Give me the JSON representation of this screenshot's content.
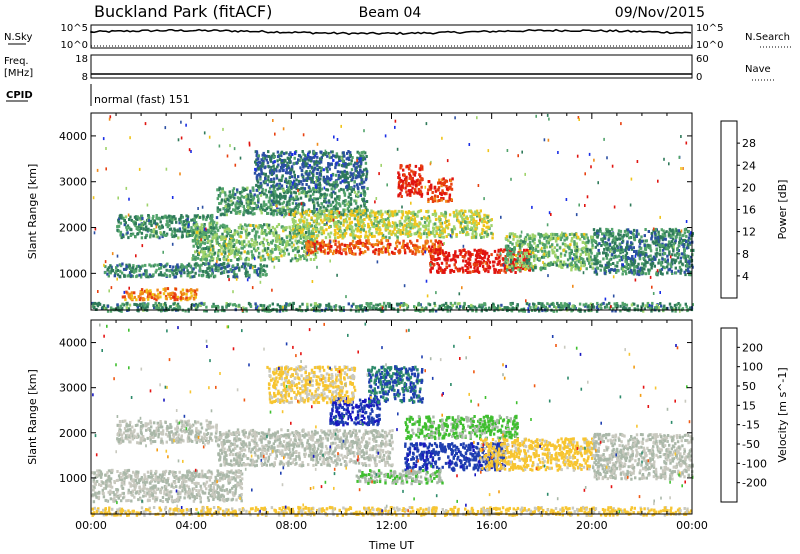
{
  "header": {
    "site": "Buckland Park (fitACF)",
    "beam": "Beam 04",
    "date": "09/Nov/2015"
  },
  "params": {
    "nsky_label": "N.Sky",
    "nsky_top": "10^5",
    "nsky_bottom": "10^0",
    "nsearch_label": "N.Search",
    "nsearch_top": "10^5",
    "nsearch_bottom": "10^0",
    "freq_label": "Freq.",
    "freq_unit": "[MHz]",
    "freq_top": "18",
    "freq_bottom": "8",
    "nave_label": "Nave",
    "nave_top": "60",
    "nave_bottom": "0",
    "cpid_label": "CPID",
    "cpid_value": "normal (fast) 151"
  },
  "colors": {
    "power": [
      "#1a2ee6",
      "#2b4fa3",
      "#2f7a5a",
      "#52a36b",
      "#9fd36b",
      "#f0c419",
      "#f08a1a",
      "#e8400f",
      "#e01410"
    ],
    "velocity": [
      "#e51414",
      "#f05a14",
      "#f39c12",
      "#f7c531",
      "#c9c9bf",
      "#aab8a9",
      "#3fbf2f",
      "#2c8a6a",
      "#1f3fb0",
      "#1818c0"
    ]
  },
  "chart_data": [
    {
      "type": "heatmap",
      "quantity": "Power",
      "x_label": "Time UT",
      "x_ticks": [
        "00:00",
        "04:00",
        "08:00",
        "12:00",
        "16:00",
        "20:00",
        "00:00"
      ],
      "x_range_hours": [
        0,
        24
      ],
      "ylabel": "Slant Range [km]",
      "ylim": [
        200,
        4500
      ],
      "y_ticks": [
        1000,
        2000,
        3000,
        4000
      ],
      "colorbar_label": "Power [dB]",
      "colorbar_ticks": [
        "28",
        "24",
        "20",
        "16",
        "12",
        "8",
        "4"
      ],
      "colorbar_range": [
        0,
        30
      ],
      "echo_regions": [
        {
          "t_start": 0,
          "t_end": 24,
          "range_min": 200,
          "range_max": 380,
          "value": 10
        },
        {
          "t_start": 1.2,
          "t_end": 4.2,
          "range_min": 450,
          "range_max": 700,
          "value": 22
        },
        {
          "t_start": 0.5,
          "t_end": 7,
          "range_min": 950,
          "range_max": 1250,
          "value": 9
        },
        {
          "t_start": 1,
          "t_end": 5,
          "range_min": 1800,
          "range_max": 2300,
          "value": 10
        },
        {
          "t_start": 4,
          "t_end": 9,
          "range_min": 1300,
          "range_max": 2100,
          "value": 13
        },
        {
          "t_start": 5,
          "t_end": 11,
          "range_min": 2300,
          "range_max": 2900,
          "value": 10
        },
        {
          "t_start": 8.5,
          "t_end": 14,
          "range_min": 1450,
          "range_max": 1750,
          "value": 24
        },
        {
          "t_start": 8,
          "t_end": 16,
          "range_min": 1800,
          "range_max": 2400,
          "value": 16
        },
        {
          "t_start": 12.2,
          "t_end": 13.2,
          "range_min": 2700,
          "range_max": 3400,
          "value": 28
        },
        {
          "t_start": 13.4,
          "t_end": 14.4,
          "range_min": 2600,
          "range_max": 3100,
          "value": 26
        },
        {
          "t_start": 13.5,
          "t_end": 17.5,
          "range_min": 1050,
          "range_max": 1550,
          "value": 29
        },
        {
          "t_start": 16.5,
          "t_end": 20,
          "range_min": 1100,
          "range_max": 1900,
          "value": 13
        },
        {
          "t_start": 20,
          "t_end": 24,
          "range_min": 1000,
          "range_max": 2000,
          "value": 9
        },
        {
          "t_start": 6.5,
          "t_end": 11,
          "range_min": 2900,
          "range_max": 3700,
          "value": 7
        }
      ]
    },
    {
      "type": "heatmap",
      "quantity": "Velocity",
      "x_label": "Time UT",
      "x_ticks": [
        "00:00",
        "04:00",
        "08:00",
        "12:00",
        "16:00",
        "20:00",
        "00:00"
      ],
      "x_range_hours": [
        0,
        24
      ],
      "ylabel": "Slant Range [km]",
      "ylim": [
        200,
        4500
      ],
      "y_ticks": [
        1000,
        2000,
        3000,
        4000
      ],
      "colorbar_label": "Velocity [m s^-1]",
      "colorbar_ticks": [
        "200",
        "100",
        "50",
        "15",
        "-15",
        "-50",
        "-100",
        "-200"
      ],
      "colorbar_range": [
        -250,
        250
      ],
      "echo_regions": [
        {
          "t_start": 0,
          "t_end": 24,
          "range_min": 200,
          "range_max": 380,
          "value": -60
        },
        {
          "t_start": 0,
          "t_end": 6,
          "range_min": 500,
          "range_max": 1200,
          "value": 0
        },
        {
          "t_start": 1,
          "t_end": 5,
          "range_min": 1800,
          "range_max": 2300,
          "value": 0
        },
        {
          "t_start": 5,
          "t_end": 12,
          "range_min": 1300,
          "range_max": 2100,
          "value": 5
        },
        {
          "t_start": 9.5,
          "t_end": 11.5,
          "range_min": 2200,
          "range_max": 2800,
          "value": 200
        },
        {
          "t_start": 11,
          "t_end": 13.2,
          "range_min": 2700,
          "range_max": 3500,
          "value": 150
        },
        {
          "t_start": 12.5,
          "t_end": 17,
          "range_min": 1900,
          "range_max": 2400,
          "value": 60
        },
        {
          "t_start": 12.5,
          "t_end": 16.5,
          "range_min": 1200,
          "range_max": 1800,
          "value": 180
        },
        {
          "t_start": 15.5,
          "t_end": 20,
          "range_min": 1200,
          "range_max": 1900,
          "value": -70
        },
        {
          "t_start": 20,
          "t_end": 24,
          "range_min": 1000,
          "range_max": 2000,
          "value": 0
        },
        {
          "t_start": 7,
          "t_end": 10.5,
          "range_min": 2700,
          "range_max": 3500,
          "value": -60
        },
        {
          "t_start": 10.5,
          "t_end": 14,
          "range_min": 900,
          "range_max": 1200,
          "value": 40
        }
      ]
    }
  ]
}
